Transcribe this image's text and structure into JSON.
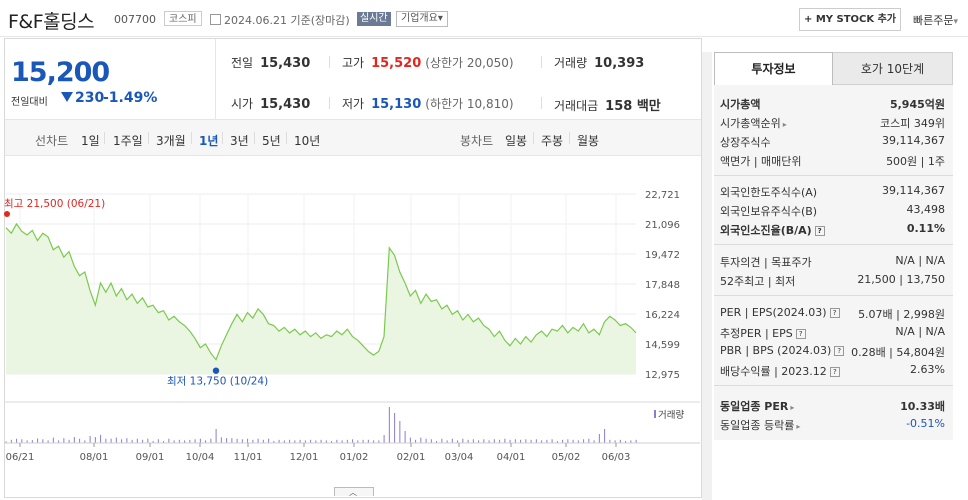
{
  "header": {
    "name": "F&F홀딩스",
    "code": "007700",
    "market": "코스피",
    "date": "2024.06.21",
    "date_suffix": "기준(장마감)",
    "live": "실시간",
    "info": "기업개요",
    "mystock": "+ MY STOCK 추가",
    "quick": "빠른주문"
  },
  "price": {
    "current": "15,200",
    "prev_label": "전일대비",
    "change": "230",
    "pct": "-1.49%"
  },
  "stats": {
    "prev_label": "전일",
    "prev": "15,430",
    "high_label": "고가",
    "high": "15,520",
    "upper": "(상한가 20,050)",
    "vol_label": "거래량",
    "vol": "10,393",
    "open_label": "시가",
    "open": "15,430",
    "low_label": "저가",
    "low": "15,130",
    "lower": "(하한가 10,810)",
    "amt_label": "거래대금",
    "amt": "158 백만"
  },
  "tabs": {
    "line_label": "선차트",
    "periods": [
      "1일",
      "1주일",
      "3개월",
      "1년",
      "3년",
      "5년",
      "10년"
    ],
    "active": "1년",
    "candle_label": "봉차트",
    "candle": [
      "일봉",
      "주봉",
      "월봉"
    ]
  },
  "panel": {
    "tab_on": "투자정보",
    "tab_off": "호가 10단계",
    "rows1": [
      {
        "k": "시가총액",
        "v": "5,945억원"
      },
      {
        "k": "시가총액순위",
        "v": "코스피 349위"
      },
      {
        "k": "상장주식수",
        "v": "39,114,367"
      },
      {
        "k": "액면가 | 매매단위",
        "v": "500원 | 1주"
      }
    ],
    "rows2": [
      {
        "k": "외국인한도주식수(A)",
        "v": "39,114,367"
      },
      {
        "k": "외국인보유주식수(B)",
        "v": "43,498"
      },
      {
        "k": "외국인소진율(B/A)",
        "v": "0.11%"
      }
    ],
    "rows3": [
      {
        "k": "투자의견 | 목표주가",
        "v": "N/A | N/A"
      },
      {
        "k": "52주최고 | 최저",
        "v": "21,500 | 13,750"
      }
    ],
    "rows4": [
      {
        "k": "PER | EPS(2024.03)",
        "v": "5.07배 | 2,998원"
      },
      {
        "k": "추정PER | EPS",
        "v": "N/A | N/A"
      },
      {
        "k": "PBR | BPS (2024.03)",
        "v": "0.28배 | 54,804원"
      },
      {
        "k": "배당수익률 | 2023.12",
        "v": "2.63%"
      }
    ],
    "rows5": [
      {
        "k": "동일업종 PER",
        "v": "10.33배"
      },
      {
        "k": "동일업종 등락률",
        "v": "-0.51%"
      }
    ]
  },
  "chart_data": {
    "type": "area",
    "y_ticks": [
      "22,721",
      "21,096",
      "19,472",
      "17,848",
      "16,224",
      "14,599",
      "12,975"
    ],
    "ylim": [
      12975,
      22721
    ],
    "x_ticks": [
      "06/21",
      "08/01",
      "09/01",
      "10/04",
      "11/01",
      "12/01",
      "01/02",
      "02/01",
      "03/04",
      "04/01",
      "05/02",
      "06/03"
    ],
    "max_label": "최고 21,500 (06/21)",
    "min_label": "최저 13,750 (10/24)",
    "volume_label": "거래량",
    "colors": {
      "line": "#7bc94f",
      "fill": "#eaf6e1",
      "volume": "#8c7bd1",
      "max": "#e2271f",
      "min": "#1957b8"
    },
    "prices": [
      20900,
      20600,
      21100,
      20700,
      20500,
      20750,
      20200,
      20600,
      20400,
      19700,
      19900,
      19300,
      19600,
      18800,
      18300,
      18500,
      17500,
      16700,
      17900,
      17400,
      17900,
      17200,
      17600,
      17000,
      17300,
      16800,
      17100,
      16600,
      16700,
      16300,
      16400,
      15900,
      16100,
      15800,
      15600,
      15300,
      14900,
      14400,
      14600,
      14100,
      13750,
      14500,
      15100,
      15700,
      16200,
      15800,
      16300,
      16000,
      16500,
      16200,
      15700,
      15600,
      15300,
      15500,
      15200,
      15400,
      15100,
      15300,
      15000,
      15200,
      14900,
      15100,
      15000,
      15300,
      15100,
      15400,
      15000,
      14800,
      14500,
      14200,
      14000,
      14200,
      15000,
      19800,
      19400,
      18500,
      17900,
      17200,
      17500,
      16800,
      17300,
      16900,
      17000,
      16500,
      16700,
      16200,
      16400,
      15900,
      16200,
      15800,
      16000,
      15600,
      15400,
      15000,
      15300,
      14800,
      14500,
      14900,
      14600,
      15000,
      14700,
      15100,
      15300,
      15000,
      15400,
      15300,
      15600,
      15200,
      15500,
      15300,
      15700,
      15200,
      15400,
      15100,
      15800,
      16100,
      15900,
      15600,
      15700,
      15500,
      15200
    ]
  }
}
